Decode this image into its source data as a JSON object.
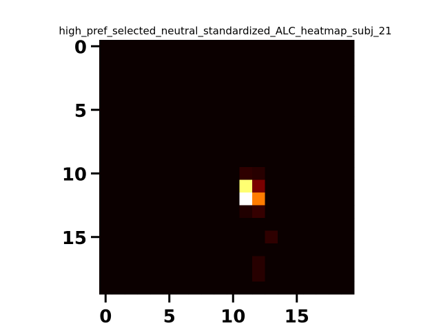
{
  "chart_data": {
    "type": "heatmap",
    "title": "high_pref_selected_neutral_standardized_ALC_heatmap_subj_21",
    "xlabel": "",
    "ylabel": "",
    "colormap": "hot",
    "rows": 20,
    "cols": 20,
    "xlim": [
      -0.5,
      19.5
    ],
    "ylim": [
      19.5,
      -0.5
    ],
    "x_ticks": [
      0,
      5,
      10,
      15
    ],
    "y_ticks": [
      0,
      5,
      10,
      15
    ],
    "x_tick_labels": [
      "0",
      "5",
      "10",
      "15"
    ],
    "y_tick_labels": [
      "0",
      "5",
      "10",
      "15"
    ],
    "vmin": 0,
    "vmax": 1,
    "background_value": 0.0,
    "cells": [
      {
        "row": 10,
        "col": 11,
        "value": 0.05
      },
      {
        "row": 10,
        "col": 12,
        "value": 0.04
      },
      {
        "row": 11,
        "col": 11,
        "value": 0.86
      },
      {
        "row": 11,
        "col": 12,
        "value": 0.16
      },
      {
        "row": 12,
        "col": 11,
        "value": 1.0
      },
      {
        "row": 12,
        "col": 12,
        "value": 0.55
      },
      {
        "row": 13,
        "col": 11,
        "value": 0.03
      },
      {
        "row": 13,
        "col": 12,
        "value": 0.06
      },
      {
        "row": 15,
        "col": 13,
        "value": 0.05
      },
      {
        "row": 17,
        "col": 12,
        "value": 0.04
      },
      {
        "row": 18,
        "col": 12,
        "value": 0.04
      }
    ]
  }
}
